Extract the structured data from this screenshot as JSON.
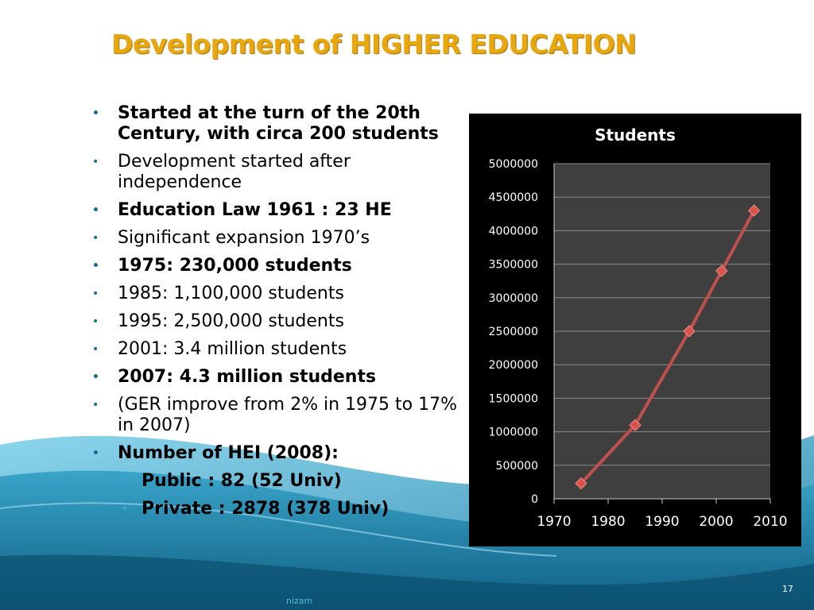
{
  "slide": {
    "title": "Development of HIGHER EDUCATION",
    "slide_number": "17",
    "footer": "nizam",
    "bullets": [
      {
        "text": "Started at the turn of the 20th Century, with circa 200 students",
        "bold": true,
        "level": 1
      },
      {
        "text": "Development started after independence",
        "bold": false,
        "level": 1
      },
      {
        "text": "Education Law 1961 : 23 HE",
        "bold": true,
        "level": 1
      },
      {
        "text": "Significant expansion 1970’s",
        "bold": false,
        "level": 1
      },
      {
        "text": "1975: 230,000 students",
        "bold": true,
        "level": 1
      },
      {
        "text": "1985: 1,100,000 students",
        "bold": false,
        "level": 1
      },
      {
        "text": "1995: 2,500,000 students",
        "bold": false,
        "level": 1
      },
      {
        "text": "2001: 3.4 million students",
        "bold": false,
        "level": 1
      },
      {
        "text": "2007: 4.3 million students",
        "bold": true,
        "level": 1
      },
      {
        "text": "(GER improve from 2% in 1975 to 17% in 2007)",
        "bold": false,
        "level": 1
      },
      {
        "text": "Number of HEI (2008):",
        "bold": true,
        "level": 1
      },
      {
        "text": "Public : 82 (52 Univ)",
        "bold": true,
        "level": 2
      },
      {
        "text": "Private : 2878 (378 Univ)",
        "bold": true,
        "level": 2
      }
    ]
  },
  "colors": {
    "title": "#e8a70c",
    "chart_bg": "#000000",
    "plot_bg": "#3f3f3f",
    "line": "#c0504d",
    "marker": "#d9534f",
    "wave_dark": "#1d7fa6",
    "wave_light": "#7fd0ea"
  },
  "chart_data": {
    "type": "scatter",
    "title": "Students",
    "xlabel": "",
    "ylabel": "",
    "xlim": [
      1970,
      2010
    ],
    "ylim": [
      0,
      5000000
    ],
    "x_ticks": [
      1970,
      1980,
      1990,
      2000,
      2010
    ],
    "y_ticks": [
      0,
      500000,
      1000000,
      1500000,
      2000000,
      2500000,
      3000000,
      3500000,
      4000000,
      4500000,
      5000000
    ],
    "grid": true,
    "legend": "none",
    "series": [
      {
        "x": [
          1975,
          1985,
          1995,
          2001,
          2007
        ],
        "y": [
          230000,
          1100000,
          2500000,
          3400000,
          4300000
        ]
      }
    ]
  }
}
